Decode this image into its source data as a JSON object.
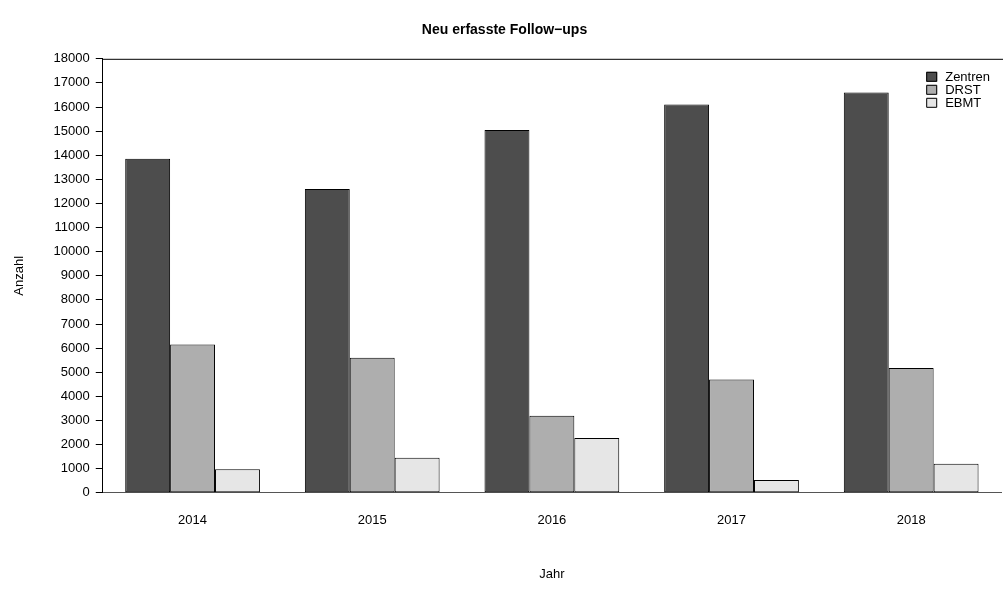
{
  "chart_data": {
    "type": "bar",
    "title": "Neu erfasste Follow−ups",
    "xlabel": "Jahr",
    "ylabel": "Anzahl",
    "categories": [
      "2014",
      "2015",
      "2016",
      "2017",
      "2018"
    ],
    "series": [
      {
        "name": "Zentren",
        "color": "#4d4d4d",
        "values": [
          13850,
          12600,
          15050,
          16100,
          16600
        ]
      },
      {
        "name": "DRST",
        "color": "#aeaeae",
        "values": [
          6150,
          5600,
          3200,
          4700,
          5180
        ]
      },
      {
        "name": "EBMT",
        "color": "#e6e6e6",
        "values": [
          980,
          1450,
          2270,
          530,
          1200
        ]
      }
    ],
    "ylim": [
      0,
      18000
    ],
    "yticks": [
      0,
      1000,
      2000,
      3000,
      4000,
      5000,
      6000,
      7000,
      8000,
      9000,
      10000,
      11000,
      12000,
      13000,
      14000,
      15000,
      16000,
      17000,
      18000
    ],
    "grid": false,
    "legend": "top right"
  }
}
